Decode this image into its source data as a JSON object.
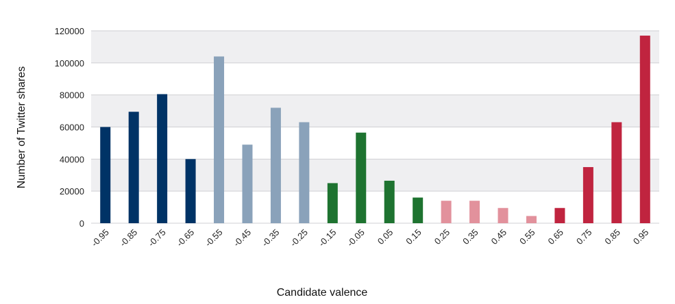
{
  "chart_data": {
    "type": "bar",
    "title": "",
    "xlabel": "Candidate valence",
    "ylabel": "Number of Twitter shares",
    "ylim": [
      0,
      120000
    ],
    "yticks": [
      0,
      20000,
      40000,
      60000,
      80000,
      100000,
      120000
    ],
    "grid": true,
    "categories": [
      "-0.95",
      "-0.85",
      "-0.75",
      "-0.65",
      "-0.55",
      "-0.45",
      "-0.35",
      "-0.25",
      "-0.15",
      "-0.05",
      "0.05",
      "0.15",
      "0.25",
      "0.35",
      "0.45",
      "0.55",
      "0.65",
      "0.75",
      "0.85",
      "0.95"
    ],
    "values": [
      60000,
      69500,
      80500,
      40000,
      104000,
      49000,
      72000,
      63000,
      25000,
      56500,
      26500,
      16000,
      14000,
      14000,
      9500,
      4500,
      9500,
      35000,
      63000,
      117000
    ],
    "colors": [
      "#003366",
      "#003366",
      "#003366",
      "#003366",
      "#8aa2ba",
      "#8aa2ba",
      "#8aa2ba",
      "#8aa2ba",
      "#1e7330",
      "#1e7330",
      "#1e7330",
      "#1e7330",
      "#e2919c",
      "#e2919c",
      "#e2919c",
      "#e2919c",
      "#c0243f",
      "#c0243f",
      "#c0243f",
      "#c0243f"
    ],
    "band_color": "#efeff1"
  }
}
